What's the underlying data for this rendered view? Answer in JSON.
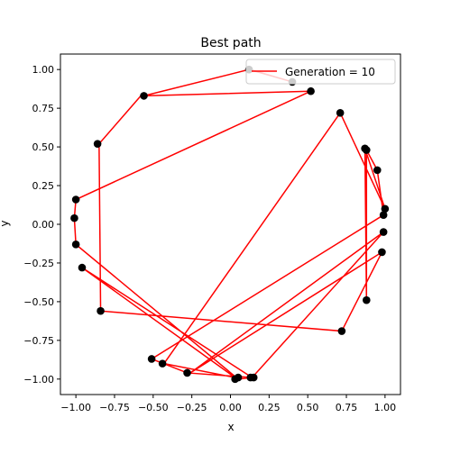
{
  "chart_data": {
    "type": "line",
    "title": "Best path",
    "xlabel": "x",
    "ylabel": "y",
    "xlim": [
      -1.1,
      1.1
    ],
    "ylim": [
      -1.1,
      1.1
    ],
    "x_ticks": [
      -1.0,
      -0.75,
      -0.5,
      -0.25,
      0.0,
      0.25,
      0.5,
      0.75,
      1.0
    ],
    "x_tick_labels": [
      "−1.00",
      "−0.75",
      "−0.50",
      "−0.25",
      "0.00",
      "0.25",
      "0.50",
      "0.75",
      "1.00"
    ],
    "y_ticks": [
      -1.0,
      -0.75,
      -0.5,
      -0.25,
      0.0,
      0.25,
      0.5,
      0.75,
      1.0
    ],
    "y_tick_labels": [
      "−1.00",
      "−0.75",
      "−0.50",
      "−0.25",
      "0.00",
      "0.25",
      "0.50",
      "0.75",
      "1.00"
    ],
    "grid": false,
    "legend": {
      "position": "top-right",
      "entries": [
        {
          "label": "Generation = 10",
          "color": "#ff0000",
          "marker": "line"
        }
      ]
    },
    "series": [
      {
        "name": "Generation = 10",
        "color": "#ff0000",
        "path": [
          [
            0.13,
            1.0
          ],
          [
            0.4,
            0.92
          ],
          [
            0.12,
            1.0
          ],
          [
            -0.56,
            0.83
          ],
          [
            0.52,
            0.86
          ],
          [
            -1.0,
            0.16
          ],
          [
            -1.01,
            0.04
          ],
          [
            -1.0,
            -0.13
          ],
          [
            0.05,
            -1.0
          ],
          [
            0.14,
            -0.99
          ],
          [
            -0.96,
            -0.28
          ],
          [
            0.03,
            -0.99
          ],
          [
            -0.43,
            -0.9
          ],
          [
            0.71,
            0.72
          ],
          [
            1.0,
            0.1
          ],
          [
            0.87,
            0.49
          ],
          [
            0.88,
            -0.49
          ],
          [
            0.88,
            0.48
          ],
          [
            0.95,
            0.35
          ],
          [
            0.99,
            0.06
          ],
          [
            -0.51,
            -0.87
          ],
          [
            -0.28,
            -0.96
          ],
          [
            0.14,
            -0.99
          ],
          [
            0.99,
            -0.05
          ],
          [
            -0.26,
            -0.96
          ],
          [
            0.98,
            -0.18
          ],
          [
            0.72,
            -0.69
          ],
          [
            -0.84,
            -0.56
          ],
          [
            -0.85,
            0.52
          ],
          [
            -0.58,
            0.83
          ]
        ]
      }
    ],
    "points": {
      "color": "#000000",
      "values": [
        [
          0.12,
          1.0
        ],
        [
          0.4,
          0.92
        ],
        [
          -0.56,
          0.83
        ],
        [
          0.52,
          0.86
        ],
        [
          0.71,
          0.72
        ],
        [
          -0.86,
          0.52
        ],
        [
          0.87,
          0.49
        ],
        [
          0.88,
          0.48
        ],
        [
          0.95,
          0.35
        ],
        [
          -1.0,
          0.16
        ],
        [
          -1.01,
          0.04
        ],
        [
          1.0,
          0.1
        ],
        [
          0.99,
          0.06
        ],
        [
          -1.0,
          -0.13
        ],
        [
          0.99,
          -0.05
        ],
        [
          0.98,
          -0.18
        ],
        [
          -0.96,
          -0.28
        ],
        [
          0.88,
          -0.49
        ],
        [
          -0.84,
          -0.56
        ],
        [
          0.72,
          -0.69
        ],
        [
          -0.51,
          -0.87
        ],
        [
          -0.44,
          -0.9
        ],
        [
          -0.28,
          -0.96
        ],
        [
          0.03,
          -1.0
        ],
        [
          0.05,
          -0.99
        ],
        [
          0.13,
          -0.99
        ],
        [
          0.15,
          -0.99
        ]
      ]
    }
  }
}
